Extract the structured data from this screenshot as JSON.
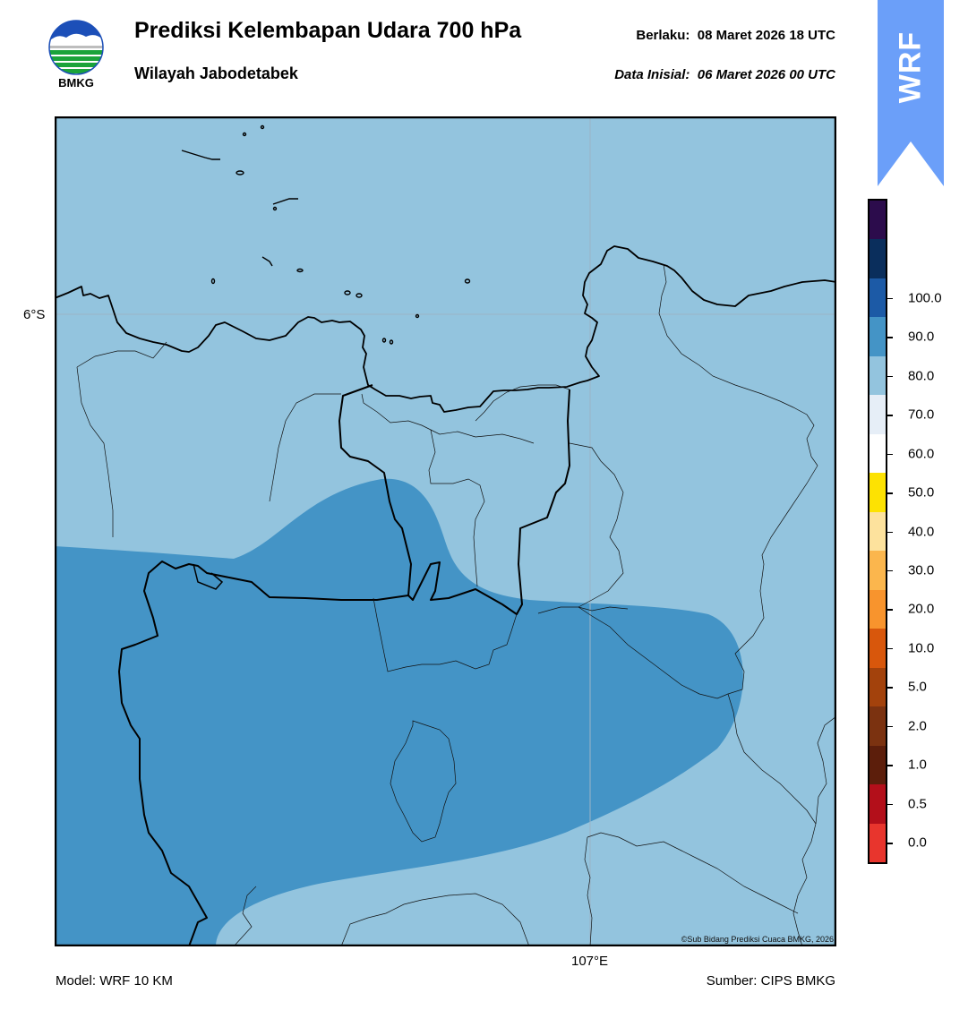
{
  "header": {
    "logo_text": "BMKG",
    "title": "Prediksi Kelembapan Udara 700 hPa",
    "subtitle": "Wilayah Jabodetabek",
    "valid_label": "Berlaku:",
    "valid_value": "08 Maret 2026 18 UTC",
    "init_label": "Data Inisial:",
    "init_value": "06 Maret 2026 00 UTC"
  },
  "badge": {
    "text": "WRF",
    "color": "#6b9ff9"
  },
  "map": {
    "latitude_label": "6°S",
    "longitude_label": "107°E",
    "copyright": "©Sub Bidang Prediksi Cuaca BMKG, 2026",
    "fill_colors": {
      "range_60_70": "#93c4de",
      "range_70_80": "#4494c6"
    }
  },
  "footer": {
    "model": "Model: WRF 10 KM",
    "source": "Sumber: CIPS BMKG"
  },
  "colorbar": {
    "tick_labels": [
      "0.0",
      "0.5",
      "1.0",
      "2.0",
      "5.0",
      "10.0",
      "20.0",
      "30.0",
      "40.0",
      "50.0",
      "60.0",
      "70.0",
      "80.0",
      "90.0",
      "100.0"
    ],
    "colors_bottom_to_top": [
      "#e8352d",
      "#b30f1a",
      "#5c1e0b",
      "#7b3210",
      "#a3420c",
      "#d8570c",
      "#f8942d",
      "#fbb64d",
      "#fde29d",
      "#fde202",
      "#ffffff",
      "#e6eef7",
      "#93c4de",
      "#4494c6",
      "#1c5aa6",
      "#0a2e5c",
      "#2c0c4c"
    ]
  }
}
